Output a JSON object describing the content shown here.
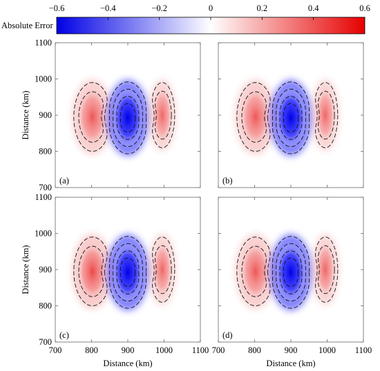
{
  "colorbar": {
    "label": "Absolute Error",
    "ticks": [
      "−0.6",
      "−0.4",
      "−0.2",
      "0",
      "0.2",
      "0.4",
      "0.6"
    ],
    "tick_values": [
      -0.6,
      -0.4,
      -0.2,
      0,
      0.2,
      0.4,
      0.6
    ],
    "range": [
      -0.6,
      0.6
    ],
    "colors": {
      "negative": "#0000e6",
      "zero": "#ffffff",
      "positive": "#e60000"
    }
  },
  "axes": {
    "xlabel": "Distance (km)",
    "ylabel": "Distance (km)",
    "xlim": [
      700,
      1100
    ],
    "ylim": [
      700,
      1100
    ],
    "xticks": [
      "700",
      "800",
      "900",
      "1000",
      "1100"
    ],
    "yticks": [
      "700",
      "800",
      "900",
      "1000",
      "1100"
    ],
    "xtick_values": [
      700,
      800,
      900,
      1000,
      1100
    ],
    "ytick_values": [
      700,
      800,
      900,
      1000,
      1100
    ]
  },
  "chart_data": [
    {
      "type": "heatmap",
      "panel_label": "(a)",
      "xlabel": "",
      "ylabel": "Distance (km)",
      "xlim": [
        700,
        1100
      ],
      "ylim": [
        700,
        1100
      ],
      "contour_style": "dashed",
      "features": [
        {
          "sign": "positive",
          "x_range": [
            750,
            855
          ],
          "y_range": [
            795,
            995
          ],
          "peak": 0.35
        },
        {
          "sign": "negative",
          "x_range": [
            845,
            955
          ],
          "y_range": [
            790,
            995
          ],
          "peak": -0.6
        },
        {
          "sign": "positive",
          "x_range": [
            960,
            1030
          ],
          "y_range": [
            805,
            995
          ],
          "peak": 0.3
        }
      ]
    },
    {
      "type": "heatmap",
      "panel_label": "(b)",
      "xlabel": "",
      "ylabel": "",
      "xlim": [
        700,
        1100
      ],
      "ylim": [
        700,
        1100
      ],
      "contour_style": "dashed",
      "features": [
        {
          "sign": "positive",
          "x_range": [
            750,
            855
          ],
          "y_range": [
            795,
            995
          ],
          "peak": 0.35
        },
        {
          "sign": "negative",
          "x_range": [
            845,
            955
          ],
          "y_range": [
            790,
            995
          ],
          "peak": -0.6
        },
        {
          "sign": "positive",
          "x_range": [
            960,
            1030
          ],
          "y_range": [
            805,
            995
          ],
          "peak": 0.3
        }
      ]
    },
    {
      "type": "heatmap",
      "panel_label": "(c)",
      "xlabel": "Distance (km)",
      "ylabel": "Distance (km)",
      "xlim": [
        700,
        1100
      ],
      "ylim": [
        700,
        1100
      ],
      "contour_style": "dashed",
      "features": [
        {
          "sign": "positive",
          "x_range": [
            750,
            855
          ],
          "y_range": [
            795,
            995
          ],
          "peak": 0.4
        },
        {
          "sign": "negative",
          "x_range": [
            845,
            955
          ],
          "y_range": [
            790,
            995
          ],
          "peak": -0.6
        },
        {
          "sign": "positive",
          "x_range": [
            960,
            1030
          ],
          "y_range": [
            805,
            995
          ],
          "peak": 0.3
        }
      ]
    },
    {
      "type": "heatmap",
      "panel_label": "(d)",
      "xlabel": "Distance (km)",
      "ylabel": "",
      "xlim": [
        700,
        1100
      ],
      "ylim": [
        700,
        1100
      ],
      "contour_style": "dashed",
      "features": [
        {
          "sign": "positive",
          "x_range": [
            750,
            855
          ],
          "y_range": [
            795,
            995
          ],
          "peak": 0.35
        },
        {
          "sign": "negative",
          "x_range": [
            845,
            955
          ],
          "y_range": [
            790,
            995
          ],
          "peak": -0.6
        },
        {
          "sign": "positive",
          "x_range": [
            960,
            1030
          ],
          "y_range": [
            805,
            995
          ],
          "peak": 0.3
        }
      ]
    }
  ]
}
